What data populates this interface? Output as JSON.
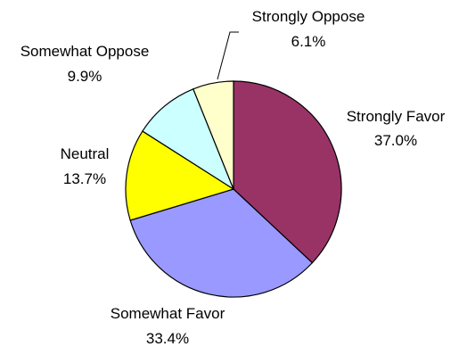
{
  "chart_data": {
    "type": "pie",
    "slices": [
      {
        "label": "Strongly Favor",
        "value": 37.0,
        "value_label": "37.0%",
        "color": "#993366"
      },
      {
        "label": "Somewhat Favor",
        "value": 33.4,
        "value_label": "33.4%",
        "color": "#9999ff"
      },
      {
        "label": "Neutral",
        "value": 13.7,
        "value_label": "13.7%",
        "color": "#ffff00"
      },
      {
        "label": "Somewhat Oppose",
        "value": 9.9,
        "value_label": "9.9%",
        "color": "#ccffff"
      },
      {
        "label": "Strongly Oppose",
        "value": 6.1,
        "value_label": "6.1%",
        "color": "#ffffcc"
      }
    ],
    "start_angle_deg": 0,
    "direction": "clockwise",
    "legend": "none"
  }
}
